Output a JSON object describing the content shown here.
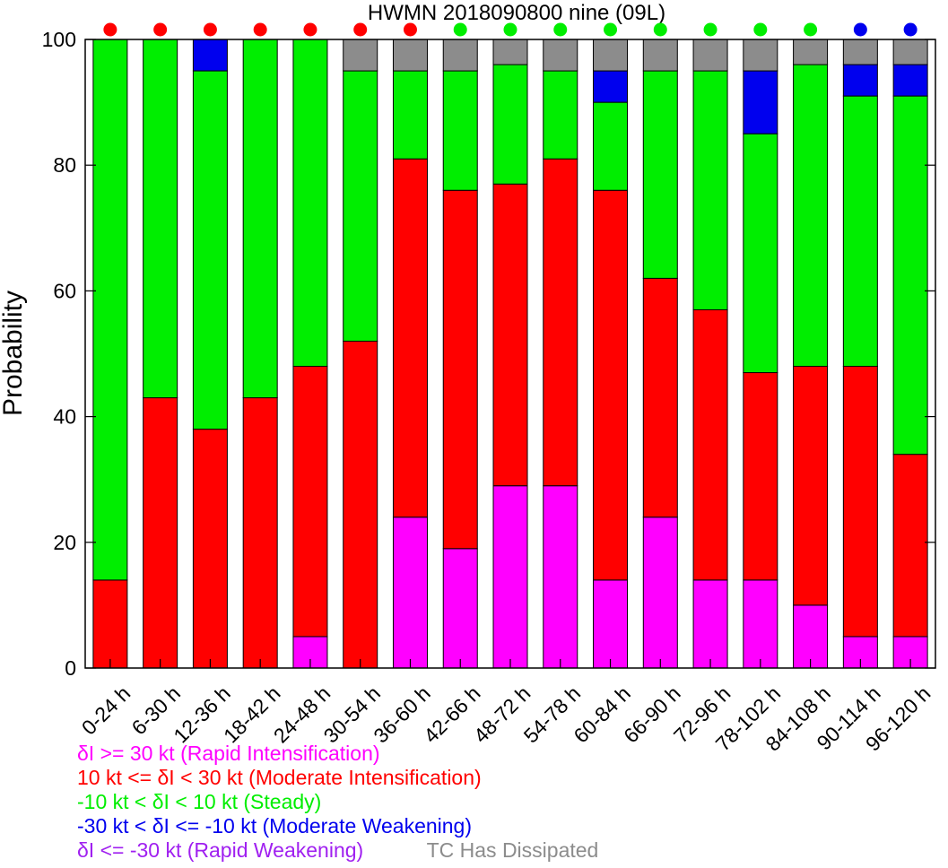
{
  "chart_data": {
    "type": "bar",
    "stacked": true,
    "title": "HWMN 2018090800 nine (09L)",
    "xlabel": "",
    "ylabel": "Probability",
    "ylim": [
      0,
      100
    ],
    "yticks": [
      0,
      20,
      40,
      60,
      80,
      100
    ],
    "grid": false,
    "legend_position": "bottom-left",
    "categories": [
      "0-24 h",
      "6-30 h",
      "12-36 h",
      "18-42 h",
      "24-48 h",
      "30-54 h",
      "36-60 h",
      "42-66 h",
      "48-72 h",
      "54-78 h",
      "60-84 h",
      "66-90 h",
      "72-96 h",
      "78-102 h",
      "84-108 h",
      "90-114 h",
      "96-120 h"
    ],
    "series": [
      {
        "name": "δI >= 30 kt (Rapid Intensification)",
        "color": "#ff00ff",
        "values": [
          0,
          0,
          0,
          0,
          5,
          0,
          24,
          19,
          29,
          29,
          14,
          24,
          14,
          14,
          10,
          5,
          5
        ]
      },
      {
        "name": "10 kt <= δI < 30 kt (Moderate Intensification)",
        "color": "#ff0000",
        "values": [
          14,
          43,
          38,
          43,
          43,
          52,
          57,
          57,
          48,
          52,
          62,
          38,
          43,
          33,
          38,
          43,
          29
        ]
      },
      {
        "name": "-10 kt < δI < 10 kt (Steady)",
        "color": "#00ee00",
        "values": [
          86,
          57,
          57,
          57,
          52,
          43,
          14,
          19,
          19,
          14,
          14,
          33,
          38,
          38,
          48,
          43,
          57
        ]
      },
      {
        "name": "-30 kt < δI <= -10 kt (Moderate Weakening)",
        "color": "#0000ee",
        "values": [
          0,
          0,
          5,
          0,
          0,
          0,
          0,
          0,
          0,
          0,
          5,
          0,
          0,
          10,
          0,
          5,
          5
        ]
      },
      {
        "name": "δI <= -30 kt (Rapid Weakening)",
        "color": "#a020f0",
        "values": [
          0,
          0,
          0,
          0,
          0,
          0,
          0,
          0,
          0,
          0,
          0,
          0,
          0,
          0,
          0,
          0,
          0
        ]
      },
      {
        "name": "TC Has Dissipated",
        "color": "#8c8c8c",
        "values": [
          0,
          0,
          0,
          0,
          0,
          5,
          5,
          5,
          4,
          5,
          5,
          5,
          5,
          5,
          4,
          4,
          4
        ]
      }
    ],
    "top_markers": [
      "#ff0000",
      "#ff0000",
      "#ff0000",
      "#ff0000",
      "#ff0000",
      "#ff0000",
      "#ff0000",
      "#00ee00",
      "#00ee00",
      "#00ee00",
      "#00ee00",
      "#00ee00",
      "#00ee00",
      "#00ee00",
      "#00ee00",
      "#0000ee",
      "#0000ee"
    ]
  }
}
